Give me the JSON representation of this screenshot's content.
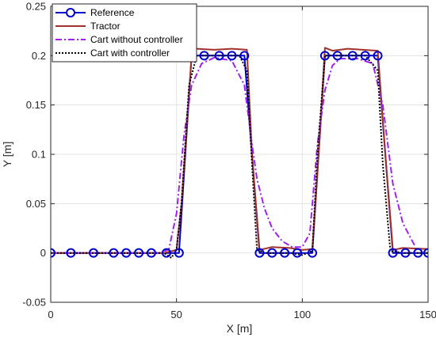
{
  "chart_data": {
    "type": "line",
    "title": "",
    "xlabel": "X [m]",
    "ylabel": "Y [m]",
    "xlim": [
      0,
      150
    ],
    "ylim": [
      -0.05,
      0.25
    ],
    "xticks": [
      0,
      50,
      100,
      150
    ],
    "yticks": [
      -0.05,
      0,
      0.05,
      0.1,
      0.15,
      0.2,
      0.25
    ],
    "xtick_labels": [
      "0",
      "50",
      "100",
      "150"
    ],
    "ytick_labels": [
      "-0.05",
      "0",
      "0.05",
      "0.1",
      "0.15",
      "0.2",
      "0.25"
    ],
    "grid": true,
    "legend_position": "top-left",
    "series": [
      {
        "name": "Reference",
        "color": "#0000CC",
        "style": "solid-circle-markers",
        "x": [
          0,
          8,
          17,
          25,
          30,
          35,
          40,
          46,
          51,
          56,
          61,
          67,
          72,
          77,
          83,
          88,
          93,
          98,
          104,
          109,
          114,
          120,
          125,
          130,
          136,
          141,
          146,
          150
        ],
        "y": [
          0,
          0,
          0,
          0,
          0,
          0,
          0,
          0,
          0,
          0.2,
          0.2,
          0.2,
          0.2,
          0.2,
          0,
          0,
          0,
          0,
          0,
          0.2,
          0.2,
          0.2,
          0.2,
          0.2,
          0,
          0,
          0,
          0
        ]
      },
      {
        "name": "Tractor",
        "color": "#A0302C",
        "style": "solid",
        "x": [
          0,
          45,
          50,
          52,
          56,
          58,
          65,
          72,
          78,
          80,
          83,
          88,
          95,
          100,
          104,
          107,
          109,
          112,
          118,
          124,
          130,
          133,
          136,
          140,
          150
        ],
        "y": [
          0,
          0,
          0.003,
          0.05,
          0.2,
          0.207,
          0.206,
          0.207,
          0.206,
          0.1,
          0.003,
          0.006,
          0.005,
          0.003,
          0.004,
          0.12,
          0.208,
          0.205,
          0.207,
          0.206,
          0.205,
          0.1,
          0.003,
          0.005,
          0.004
        ]
      },
      {
        "name": "Cart without controller",
        "color": "#A020F0",
        "style": "dash-dot",
        "x": [
          0,
          44,
          47,
          50,
          53,
          56,
          60,
          65,
          72,
          77,
          80,
          82,
          85,
          88,
          92,
          96,
          100,
          103,
          106,
          109,
          112,
          115,
          122,
          128,
          132,
          136,
          140,
          145
        ],
        "y": [
          0,
          0,
          0.004,
          0.04,
          0.12,
          0.17,
          0.192,
          0.198,
          0.195,
          0.17,
          0.11,
          0.075,
          0.045,
          0.025,
          0.012,
          0.006,
          0.006,
          0.02,
          0.11,
          0.165,
          0.19,
          0.197,
          0.197,
          0.192,
          0.15,
          0.07,
          0.03,
          0.006
        ]
      },
      {
        "name": "Cart with controller",
        "color": "#000000",
        "style": "dotted",
        "x": [
          0,
          45,
          48,
          50,
          52,
          55,
          58,
          65,
          75,
          78,
          80,
          82,
          85,
          95,
          100,
          104,
          106,
          109,
          115,
          125,
          130,
          132,
          135,
          140,
          150
        ],
        "y": [
          0,
          0,
          -0.005,
          0.004,
          0.05,
          0.17,
          0.2,
          0.2,
          0.2,
          0.185,
          0.09,
          0.003,
          0,
          0,
          -0.002,
          0.002,
          0.1,
          0.2,
          0.2,
          0.2,
          0.185,
          0.09,
          0.002,
          0,
          0
        ]
      }
    ]
  }
}
